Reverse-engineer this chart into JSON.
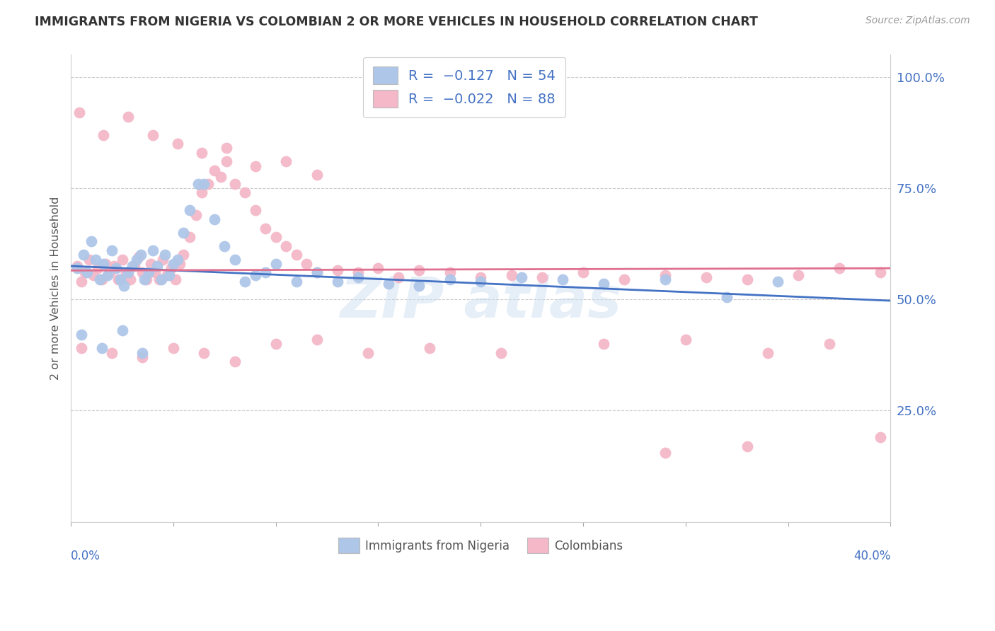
{
  "title": "IMMIGRANTS FROM NIGERIA VS COLOMBIAN 2 OR MORE VEHICLES IN HOUSEHOLD CORRELATION CHART",
  "source_text": "Source: ZipAtlas.com",
  "ylabel": "2 or more Vehicles in Household",
  "xmin": 0.0,
  "xmax": 0.4,
  "ymin": 0.0,
  "ymax": 1.05,
  "nigeria_color": "#aec6e8",
  "colombia_color": "#f4b8c8",
  "nigeria_line_color": "#4472c4",
  "colombia_line_color": "#e07090",
  "ng_line_y0": 0.575,
  "ng_line_y1": 0.497,
  "co_line_y0": 0.565,
  "co_line_y1": 0.57,
  "nigeria_x": [
    0.003,
    0.006,
    0.008,
    0.01,
    0.012,
    0.014,
    0.016,
    0.018,
    0.02,
    0.022,
    0.024,
    0.026,
    0.028,
    0.03,
    0.032,
    0.034,
    0.036,
    0.038,
    0.04,
    0.042,
    0.044,
    0.046,
    0.048,
    0.05,
    0.052,
    0.055,
    0.058,
    0.062,
    0.065,
    0.07,
    0.075,
    0.08,
    0.085,
    0.09,
    0.095,
    0.1,
    0.11,
    0.12,
    0.13,
    0.14,
    0.155,
    0.17,
    0.185,
    0.2,
    0.22,
    0.24,
    0.26,
    0.29,
    0.32,
    0.345,
    0.005,
    0.015,
    0.025,
    0.035
  ],
  "nigeria_y": [
    0.57,
    0.6,
    0.56,
    0.63,
    0.59,
    0.545,
    0.58,
    0.555,
    0.61,
    0.57,
    0.545,
    0.53,
    0.56,
    0.575,
    0.59,
    0.6,
    0.545,
    0.56,
    0.61,
    0.575,
    0.545,
    0.6,
    0.555,
    0.58,
    0.59,
    0.65,
    0.7,
    0.76,
    0.76,
    0.68,
    0.62,
    0.59,
    0.54,
    0.555,
    0.56,
    0.58,
    0.54,
    0.56,
    0.54,
    0.55,
    0.535,
    0.53,
    0.545,
    0.54,
    0.55,
    0.545,
    0.535,
    0.545,
    0.505,
    0.54,
    0.42,
    0.39,
    0.43,
    0.38
  ],
  "colombia_x": [
    0.003,
    0.005,
    0.007,
    0.009,
    0.011,
    0.013,
    0.015,
    0.017,
    0.019,
    0.021,
    0.023,
    0.025,
    0.027,
    0.029,
    0.031,
    0.033,
    0.035,
    0.037,
    0.039,
    0.041,
    0.043,
    0.045,
    0.047,
    0.049,
    0.051,
    0.053,
    0.055,
    0.058,
    0.061,
    0.064,
    0.067,
    0.07,
    0.073,
    0.076,
    0.08,
    0.085,
    0.09,
    0.095,
    0.1,
    0.105,
    0.11,
    0.115,
    0.12,
    0.13,
    0.14,
    0.15,
    0.16,
    0.17,
    0.185,
    0.2,
    0.215,
    0.23,
    0.25,
    0.27,
    0.29,
    0.31,
    0.33,
    0.355,
    0.375,
    0.395,
    0.004,
    0.016,
    0.028,
    0.04,
    0.052,
    0.064,
    0.076,
    0.09,
    0.105,
    0.12,
    0.005,
    0.02,
    0.035,
    0.05,
    0.065,
    0.08,
    0.1,
    0.12,
    0.145,
    0.175,
    0.21,
    0.26,
    0.3,
    0.34,
    0.37,
    0.395,
    0.29,
    0.33
  ],
  "colombia_y": [
    0.575,
    0.54,
    0.56,
    0.59,
    0.555,
    0.57,
    0.545,
    0.58,
    0.56,
    0.575,
    0.545,
    0.59,
    0.56,
    0.545,
    0.575,
    0.595,
    0.56,
    0.545,
    0.58,
    0.56,
    0.545,
    0.59,
    0.555,
    0.57,
    0.545,
    0.58,
    0.6,
    0.64,
    0.69,
    0.74,
    0.76,
    0.79,
    0.775,
    0.81,
    0.76,
    0.74,
    0.7,
    0.66,
    0.64,
    0.62,
    0.6,
    0.58,
    0.56,
    0.565,
    0.56,
    0.57,
    0.55,
    0.565,
    0.56,
    0.55,
    0.555,
    0.55,
    0.56,
    0.545,
    0.555,
    0.55,
    0.545,
    0.555,
    0.57,
    0.56,
    0.92,
    0.87,
    0.91,
    0.87,
    0.85,
    0.83,
    0.84,
    0.8,
    0.81,
    0.78,
    0.39,
    0.38,
    0.37,
    0.39,
    0.38,
    0.36,
    0.4,
    0.41,
    0.38,
    0.39,
    0.38,
    0.4,
    0.41,
    0.38,
    0.4,
    0.19,
    0.155,
    0.17
  ]
}
